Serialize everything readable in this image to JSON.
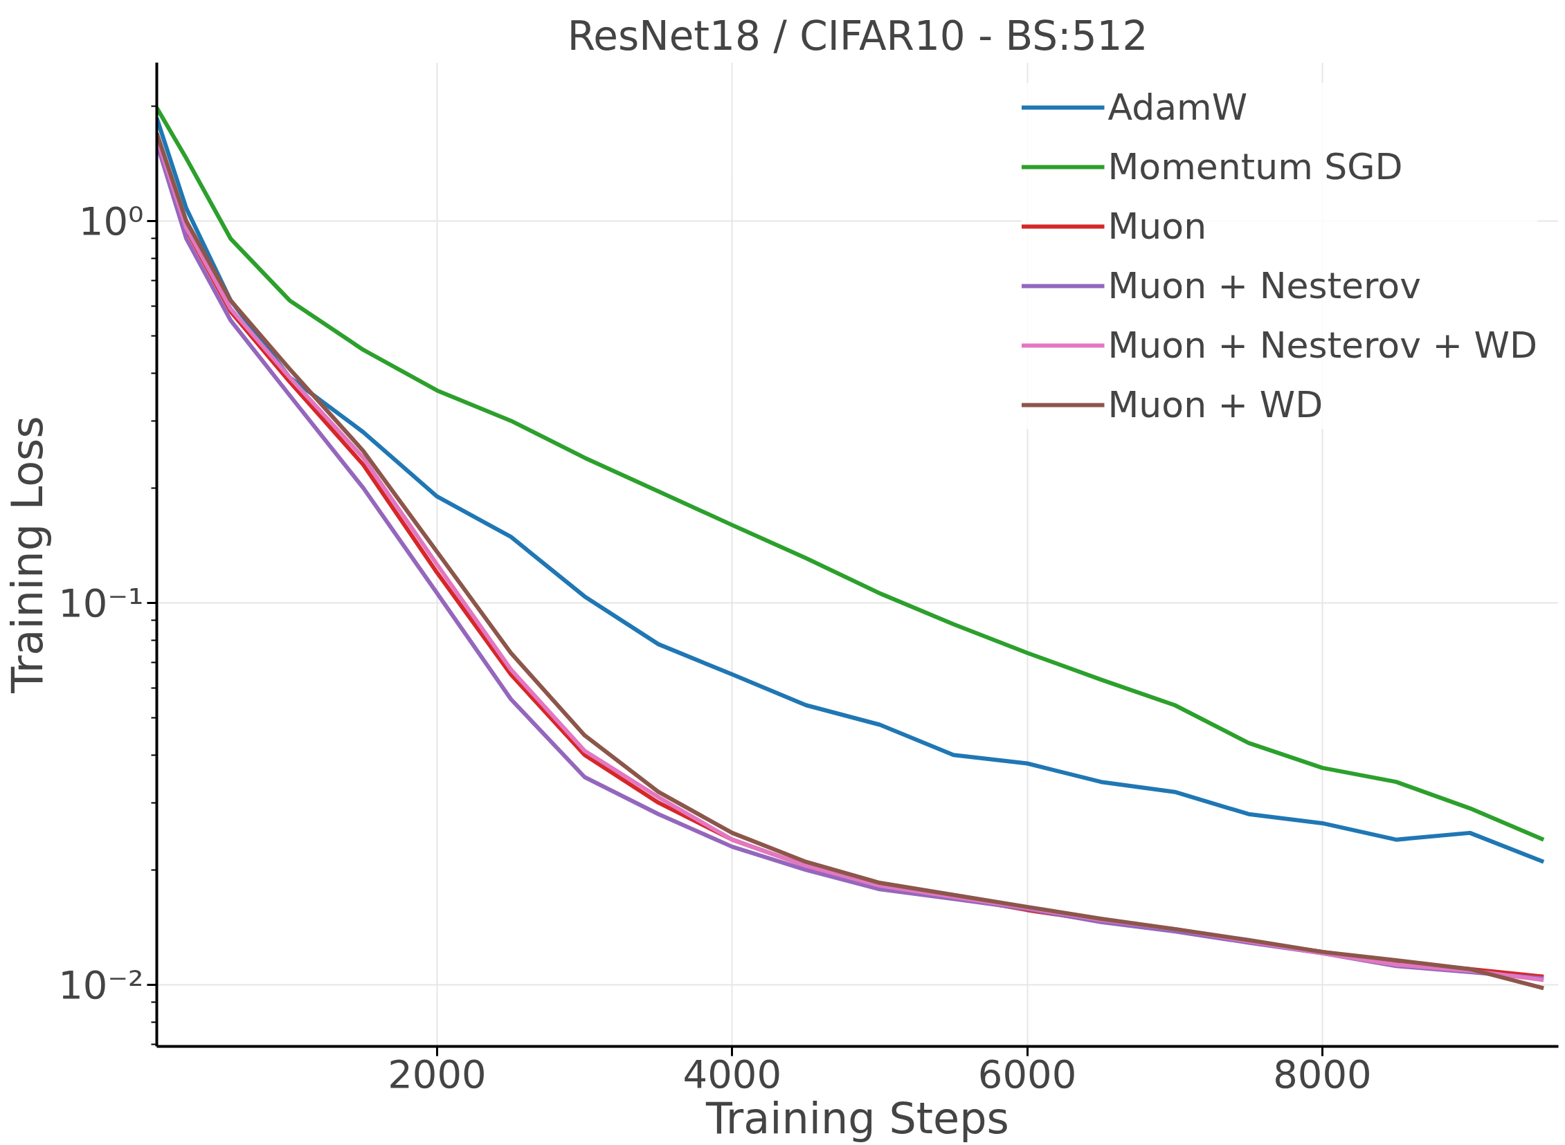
{
  "chart_data": {
    "type": "line",
    "title": "ResNet18 / CIFAR10 - BS:512",
    "xlabel": "Training Steps",
    "ylabel": "Training Loss",
    "x": [
      100,
      300,
      600,
      1000,
      1500,
      2000,
      2500,
      3000,
      3500,
      4000,
      4500,
      5000,
      5500,
      6000,
      6500,
      7000,
      7500,
      8000,
      8500,
      9000,
      9500
    ],
    "series": [
      {
        "name": "AdamW",
        "color": "#1f77b4",
        "values": [
          1.86,
          1.08,
          0.62,
          0.39,
          0.28,
          0.19,
          0.149,
          0.104,
          0.078,
          0.065,
          0.054,
          0.048,
          0.04,
          0.038,
          0.034,
          0.032,
          0.028,
          0.0265,
          0.024,
          0.025,
          0.021
        ]
      },
      {
        "name": "Momentum SGD",
        "color": "#2ca02c",
        "values": [
          1.98,
          1.46,
          0.9,
          0.62,
          0.46,
          0.36,
          0.3,
          0.24,
          0.196,
          0.16,
          0.131,
          0.106,
          0.088,
          0.074,
          0.063,
          0.054,
          0.043,
          0.037,
          0.034,
          0.029,
          0.024
        ]
      },
      {
        "name": "Muon",
        "color": "#d62728",
        "values": [
          1.65,
          0.95,
          0.58,
          0.38,
          0.23,
          0.12,
          0.065,
          0.04,
          0.03,
          0.024,
          0.0205,
          0.018,
          0.017,
          0.0157,
          0.0147,
          0.0139,
          0.013,
          0.0122,
          0.0114,
          0.011,
          0.0105
        ]
      },
      {
        "name": "Muon + Nesterov",
        "color": "#9467bd",
        "values": [
          1.6,
          0.9,
          0.55,
          0.35,
          0.2,
          0.106,
          0.056,
          0.035,
          0.028,
          0.023,
          0.02,
          0.0178,
          0.0168,
          0.0158,
          0.0146,
          0.0138,
          0.0129,
          0.0121,
          0.0112,
          0.0108,
          0.0104
        ]
      },
      {
        "name": "Muon + Nesterov + WD",
        "color": "#e377c2",
        "values": [
          1.65,
          0.96,
          0.59,
          0.39,
          0.24,
          0.126,
          0.067,
          0.041,
          0.031,
          0.024,
          0.0205,
          0.0182,
          0.017,
          0.0159,
          0.0148,
          0.014,
          0.013,
          0.0121,
          0.0113,
          0.0109,
          0.0103
        ]
      },
      {
        "name": "Muon + WD",
        "color": "#8c564b",
        "values": [
          1.7,
          1.0,
          0.62,
          0.41,
          0.25,
          0.136,
          0.074,
          0.045,
          0.032,
          0.025,
          0.021,
          0.0185,
          0.0172,
          0.016,
          0.0149,
          0.014,
          0.0131,
          0.0122,
          0.0116,
          0.011,
          0.0098
        ]
      }
    ],
    "xlim": [
      100,
      9600
    ],
    "ylim": [
      0.0069,
      2.6
    ],
    "xticks": [
      2000,
      4000,
      6000,
      8000
    ],
    "yticks": [
      {
        "value": 1,
        "label": "10⁰"
      },
      {
        "value": 0.1,
        "label": "10⁻¹"
      },
      {
        "value": 0.01,
        "label": "10⁻²"
      }
    ],
    "log": "y",
    "grid": true,
    "legend": "top right"
  }
}
